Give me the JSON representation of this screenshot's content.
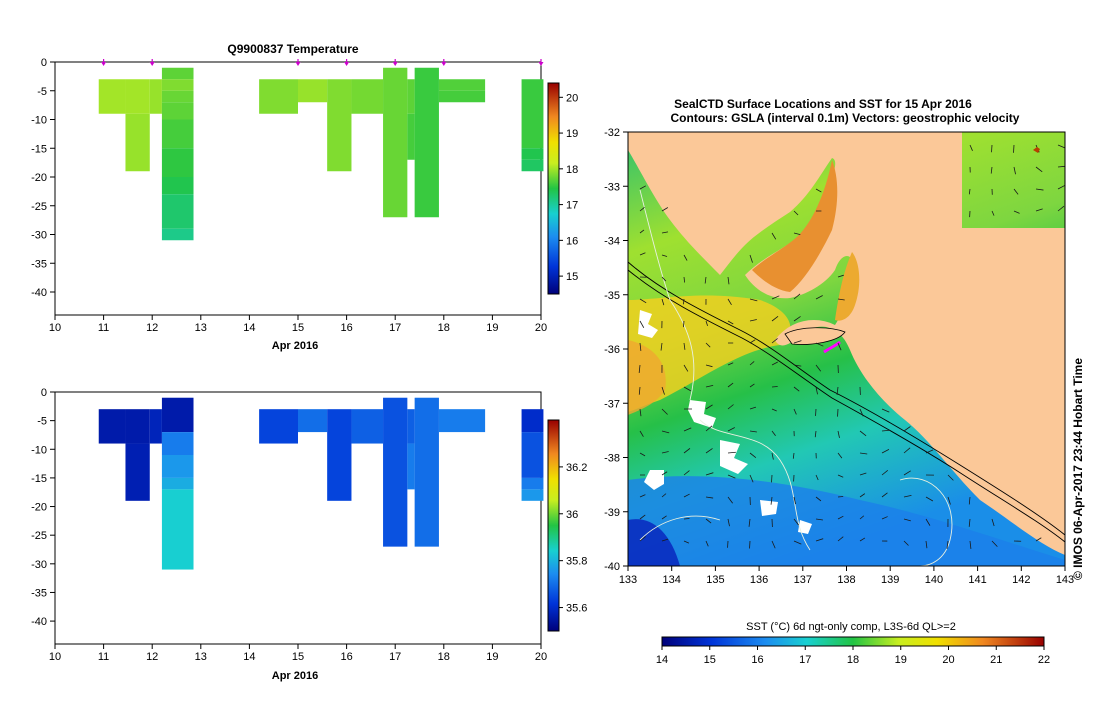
{
  "chart_data": [
    {
      "type": "heatmap",
      "title": "Q9900837  Temperature",
      "xlabel": "Apr 2016",
      "ylabel": "",
      "xlim": [
        10,
        20
      ],
      "ylim": [
        -44,
        0
      ],
      "xticks": [
        "10",
        "11",
        "12",
        "13",
        "14",
        "15",
        "16",
        "17",
        "18",
        "19",
        "20"
      ],
      "yticks": [
        "0",
        "-5",
        "-10",
        "-15",
        "-20",
        "-25",
        "-30",
        "-35",
        "-40"
      ],
      "profile_days": [
        11,
        12,
        15,
        16,
        17,
        18,
        20
      ],
      "colorbar": {
        "range": [
          14.5,
          20.4
        ],
        "ticks": [
          "15",
          "16",
          "17",
          "18",
          "19",
          "20"
        ]
      },
      "cells": [
        {
          "x0": 10.9,
          "x1": 11.45,
          "y0": -3,
          "y1": -9,
          "v": 18.0
        },
        {
          "x0": 11.45,
          "x1": 11.95,
          "y0": -3,
          "y1": -9,
          "v": 18.0
        },
        {
          "x0": 11.45,
          "x1": 11.95,
          "y0": -9,
          "y1": -19,
          "v": 17.95
        },
        {
          "x0": 11.95,
          "x1": 12.2,
          "y0": -3,
          "y1": -9,
          "v": 17.95
        },
        {
          "x0": 12.2,
          "x1": 12.85,
          "y0": -1,
          "y1": -3,
          "v": 17.7
        },
        {
          "x0": 12.2,
          "x1": 12.85,
          "y0": -3,
          "y1": -5,
          "v": 17.85
        },
        {
          "x0": 12.2,
          "x1": 12.85,
          "y0": -5,
          "y1": -7,
          "v": 17.75
        },
        {
          "x0": 12.2,
          "x1": 12.85,
          "y0": -7,
          "y1": -10,
          "v": 17.7
        },
        {
          "x0": 12.2,
          "x1": 12.85,
          "y0": -10,
          "y1": -15,
          "v": 17.6
        },
        {
          "x0": 12.2,
          "x1": 12.85,
          "y0": -15,
          "y1": -20,
          "v": 17.5
        },
        {
          "x0": 12.2,
          "x1": 12.85,
          "y0": -20,
          "y1": -23,
          "v": 17.4
        },
        {
          "x0": 12.2,
          "x1": 12.85,
          "y0": -23,
          "y1": -29,
          "v": 17.25
        },
        {
          "x0": 12.2,
          "x1": 12.85,
          "y0": -29,
          "y1": -31,
          "v": 17.1
        },
        {
          "x0": 14.2,
          "x1": 15.0,
          "y0": -3,
          "y1": -9,
          "v": 17.85
        },
        {
          "x0": 15.0,
          "x1": 15.6,
          "y0": -3,
          "y1": -7,
          "v": 17.95
        },
        {
          "x0": 15.6,
          "x1": 16.1,
          "y0": -3,
          "y1": -19,
          "v": 17.85
        },
        {
          "x0": 16.1,
          "x1": 16.75,
          "y0": -3,
          "y1": -9,
          "v": 17.8
        },
        {
          "x0": 16.75,
          "x1": 17.25,
          "y0": -1,
          "y1": -27,
          "v": 17.75
        },
        {
          "x0": 17.25,
          "x1": 17.4,
          "y0": -3,
          "y1": -9,
          "v": 17.7
        },
        {
          "x0": 17.25,
          "x1": 17.4,
          "y0": -9,
          "y1": -17,
          "v": 17.6
        },
        {
          "x0": 17.4,
          "x1": 17.9,
          "y0": -1,
          "y1": -27,
          "v": 17.55
        },
        {
          "x0": 17.9,
          "x1": 18.85,
          "y0": -3,
          "y1": -5,
          "v": 17.65
        },
        {
          "x0": 17.9,
          "x1": 18.85,
          "y0": -5,
          "y1": -7,
          "v": 17.6
        },
        {
          "x0": 19.6,
          "x1": 20.05,
          "y0": -3,
          "y1": -15,
          "v": 17.55
        },
        {
          "x0": 19.6,
          "x1": 20.05,
          "y0": -15,
          "y1": -17,
          "v": 17.4
        },
        {
          "x0": 19.6,
          "x1": 20.05,
          "y0": -17,
          "y1": -19,
          "v": 17.3
        }
      ]
    },
    {
      "type": "heatmap",
      "title": "",
      "xlabel": "Apr 2016",
      "ylabel": "",
      "xlim": [
        10,
        20
      ],
      "ylim": [
        -44,
        0
      ],
      "xticks": [
        "10",
        "11",
        "12",
        "13",
        "14",
        "15",
        "16",
        "17",
        "18",
        "19",
        "20"
      ],
      "yticks": [
        "0",
        "-5",
        "-10",
        "-15",
        "-20",
        "-25",
        "-30",
        "-35",
        "-40"
      ],
      "colorbar": {
        "range": [
          35.5,
          36.4
        ],
        "ticks": [
          "35.6",
          "35.8",
          "36",
          "36.2"
        ]
      },
      "cells": [
        {
          "x0": 10.9,
          "x1": 11.45,
          "y0": -3,
          "y1": -9,
          "v": 35.56
        },
        {
          "x0": 11.45,
          "x1": 11.95,
          "y0": -3,
          "y1": -9,
          "v": 35.56
        },
        {
          "x0": 11.45,
          "x1": 11.95,
          "y0": -9,
          "y1": -19,
          "v": 35.57
        },
        {
          "x0": 11.95,
          "x1": 12.2,
          "y0": -3,
          "y1": -9,
          "v": 35.58
        },
        {
          "x0": 12.2,
          "x1": 12.85,
          "y0": -1,
          "y1": -7,
          "v": 35.56
        },
        {
          "x0": 12.2,
          "x1": 12.85,
          "y0": -7,
          "y1": -11,
          "v": 35.72
        },
        {
          "x0": 12.2,
          "x1": 12.85,
          "y0": -11,
          "y1": -15,
          "v": 35.76
        },
        {
          "x0": 12.2,
          "x1": 12.85,
          "y0": -15,
          "y1": -17,
          "v": 35.79
        },
        {
          "x0": 12.2,
          "x1": 12.85,
          "y0": -17,
          "y1": -31,
          "v": 35.84
        },
        {
          "x0": 14.2,
          "x1": 15.0,
          "y0": -3,
          "y1": -9,
          "v": 35.64
        },
        {
          "x0": 15.0,
          "x1": 15.6,
          "y0": -3,
          "y1": -7,
          "v": 35.7
        },
        {
          "x0": 15.6,
          "x1": 16.1,
          "y0": -3,
          "y1": -19,
          "v": 35.64
        },
        {
          "x0": 16.1,
          "x1": 16.75,
          "y0": -3,
          "y1": -9,
          "v": 35.68
        },
        {
          "x0": 16.75,
          "x1": 17.25,
          "y0": -1,
          "y1": -27,
          "v": 35.66
        },
        {
          "x0": 17.25,
          "x1": 17.4,
          "y0": -3,
          "y1": -9,
          "v": 35.68
        },
        {
          "x0": 17.25,
          "x1": 17.4,
          "y0": -9,
          "y1": -17,
          "v": 35.72
        },
        {
          "x0": 17.4,
          "x1": 17.9,
          "y0": -1,
          "y1": -27,
          "v": 35.7
        },
        {
          "x0": 17.9,
          "x1": 18.85,
          "y0": -3,
          "y1": -7,
          "v": 35.72
        },
        {
          "x0": 19.6,
          "x1": 20.05,
          "y0": -3,
          "y1": -7,
          "v": 35.6
        },
        {
          "x0": 19.6,
          "x1": 20.05,
          "y0": -7,
          "y1": -15,
          "v": 35.66
        },
        {
          "x0": 19.6,
          "x1": 20.05,
          "y0": -15,
          "y1": -17,
          "v": 35.72
        },
        {
          "x0": 19.6,
          "x1": 20.05,
          "y0": -17,
          "y1": -19,
          "v": 35.76
        }
      ]
    },
    {
      "type": "heatmap",
      "title": "SealCTD Surface Locations and SST for 15 Apr 2016",
      "subtitle": "Contours: GSLA (interval 0.1m) Vectors: geostrophic velocity",
      "xlabel": "",
      "ylabel": "",
      "xlim": [
        133,
        143
      ],
      "ylim": [
        -40,
        -32
      ],
      "xticks": [
        "133",
        "134",
        "135",
        "136",
        "137",
        "138",
        "139",
        "140",
        "141",
        "142",
        "143"
      ],
      "yticks": [
        "-32",
        "-33",
        "-34",
        "-35",
        "-36",
        "-37",
        "-38",
        "-39",
        "-40"
      ],
      "colorbar": {
        "label": "SST (°C) 6d ngt-only comp, L3S-6d QL>=2",
        "range": [
          14,
          22
        ],
        "ticks": [
          "14",
          "15",
          "16",
          "17",
          "18",
          "19",
          "20",
          "21",
          "22"
        ]
      },
      "side_label": "© IMOS 06-Apr-2017 23:44 Hobart Time",
      "land_color": "#fbc898"
    }
  ]
}
